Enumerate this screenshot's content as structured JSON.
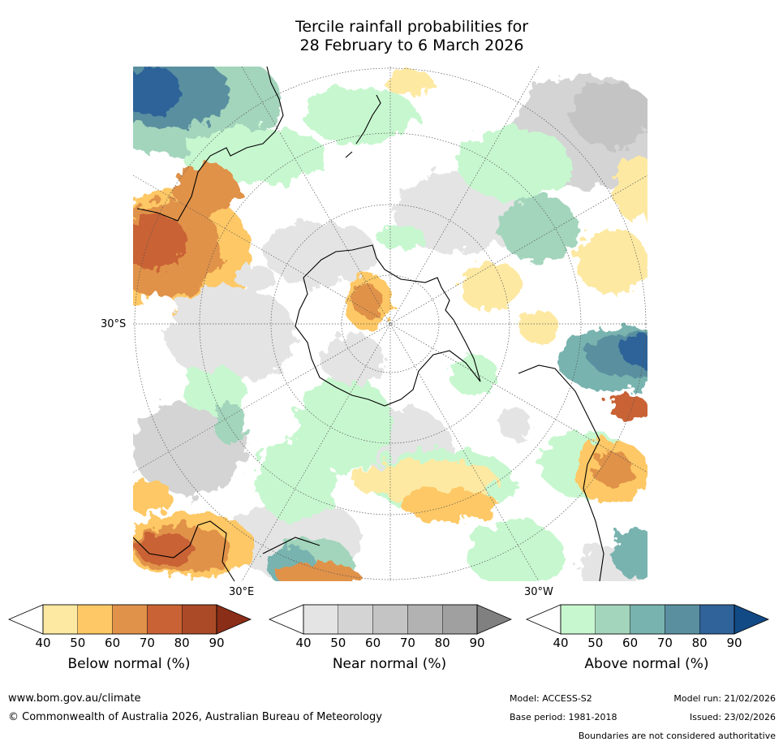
{
  "title_line1": "Tercile rainfall probabilities for",
  "title_line2": "28 February to 6 March 2026",
  "map": {
    "projection": "south polar stereographic",
    "labels": {
      "lat_30s": "30°S",
      "lon_30e": "30°E",
      "lon_30w": "30°W"
    },
    "colors": {
      "ocean_white": "#ffffff",
      "coast": "#000000",
      "grid": "#555555"
    }
  },
  "colorbars": [
    {
      "title": "Below normal (%)",
      "ticks": [
        "40",
        "50",
        "60",
        "70",
        "80",
        "90"
      ],
      "colors": [
        "#ffffff",
        "#fde9a2",
        "#fdc865",
        "#e0924a",
        "#c96234",
        "#aa4a27",
        "#8b2e18"
      ]
    },
    {
      "title": "Near normal (%)",
      "ticks": [
        "40",
        "50",
        "60",
        "70",
        "80",
        "90"
      ],
      "colors": [
        "#ffffff",
        "#e4e4e4",
        "#d4d4d4",
        "#c4c4c4",
        "#b2b2b2",
        "#a0a0a0",
        "#808080"
      ]
    },
    {
      "title": "Above normal (%)",
      "ticks": [
        "40",
        "50",
        "60",
        "70",
        "80",
        "90"
      ],
      "colors": [
        "#ffffff",
        "#c7f7cf",
        "#a3d5bc",
        "#78b3af",
        "#5a8fa0",
        "#2f6399",
        "#124a85"
      ]
    }
  ],
  "footer": {
    "url": "www.bom.gov.au/climate",
    "copyright": "© Commonwealth of Australia 2026, Australian Bureau of Meteorology",
    "model": "Model: ACCESS-S2",
    "model_run": "Model run: 21/02/2026",
    "base_period": "Base period: 1981-2018",
    "issued": "Issued: 23/02/2026",
    "disclaimer": "Boundaries are not considered authoritative"
  }
}
